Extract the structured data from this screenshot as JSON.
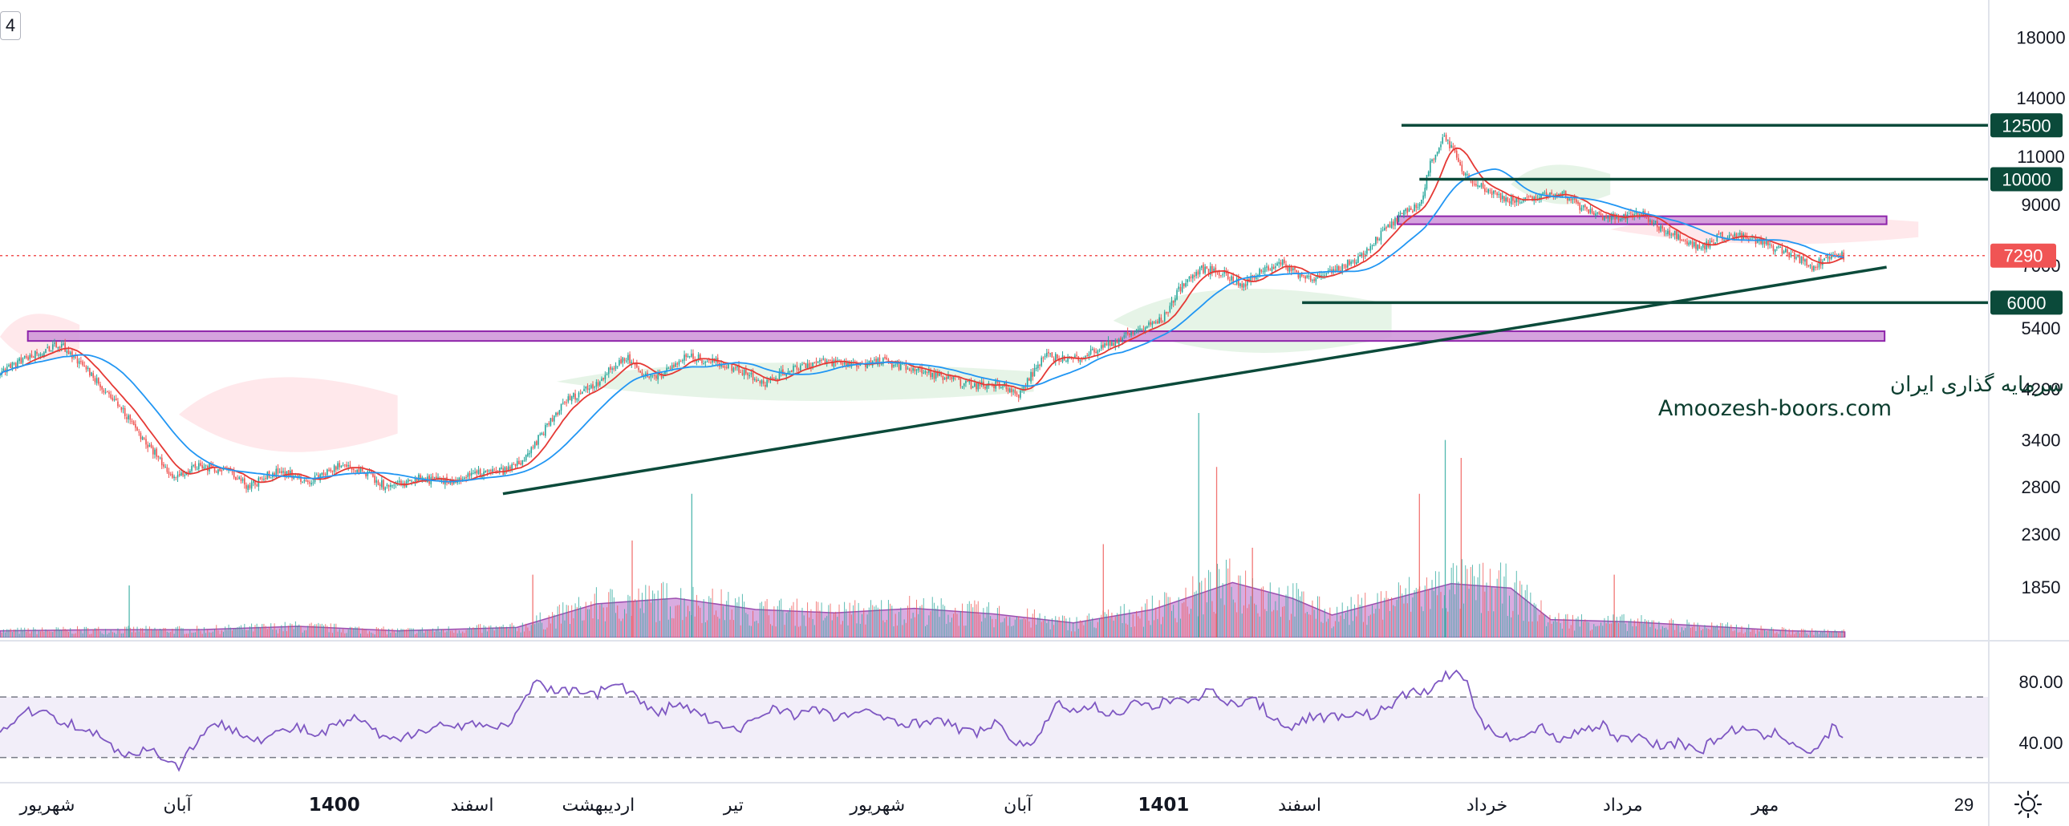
{
  "top_left_tag": "4",
  "colors": {
    "bull": "#26a69a",
    "bear": "#ef5350",
    "ma_fast": "#e53935",
    "ma_slow": "#2196f3",
    "trendline": "#0b4a3a",
    "zone_fill": "#ce93d8",
    "zone_stroke": "#8e24aa",
    "volume_ma": "#ba68c8",
    "rsi_line": "#7e57c2",
    "rsi_band": "#ede7f6",
    "last_price": "#f05454"
  },
  "icons": {
    "settings": "sun-gear-icon"
  },
  "chart_data": [
    {
      "type": "candlestick",
      "scale": "log",
      "ylim": [
        1500,
        21000
      ],
      "y_ticks": [
        1850,
        2300,
        2800,
        3400,
        4200,
        5400,
        7000,
        9000,
        11000,
        14000,
        18000
      ],
      "x_labels": [
        {
          "label": "شهریور",
          "pos": 0.0238
        },
        {
          "label": "آبان",
          "pos": 0.0892
        },
        {
          "label": "1400",
          "pos": 0.1682,
          "bold": true
        },
        {
          "label": "اسفند",
          "pos": 0.2375
        },
        {
          "label": "اردیبهشت",
          "pos": 0.301
        },
        {
          "label": "تیر",
          "pos": 0.369
        },
        {
          "label": "شهریور",
          "pos": 0.4414
        },
        {
          "label": "آبان",
          "pos": 0.512
        },
        {
          "label": "1401",
          "pos": 0.5853,
          "bold": true
        },
        {
          "label": "اسفند",
          "pos": 0.6538
        },
        {
          "label": "خرداد",
          "pos": 0.748
        },
        {
          "label": "مرداد",
          "pos": 0.8163
        },
        {
          "label": "مهر",
          "pos": 0.8879
        }
      ],
      "x_axis_extra": "29",
      "close_path": [
        [
          0.0,
          4450
        ],
        [
          0.014,
          4800
        ],
        [
          0.03,
          5050
        ],
        [
          0.045,
          4500
        ],
        [
          0.06,
          3900
        ],
        [
          0.075,
          3300
        ],
        [
          0.088,
          2900
        ],
        [
          0.1,
          3050
        ],
        [
          0.115,
          3000
        ],
        [
          0.125,
          2800
        ],
        [
          0.14,
          3000
        ],
        [
          0.155,
          2850
        ],
        [
          0.17,
          3050
        ],
        [
          0.185,
          2950
        ],
        [
          0.195,
          2780
        ],
        [
          0.21,
          2900
        ],
        [
          0.225,
          2850
        ],
        [
          0.24,
          2950
        ],
        [
          0.255,
          3000
        ],
        [
          0.265,
          3150
        ],
        [
          0.275,
          3600
        ],
        [
          0.285,
          4000
        ],
        [
          0.3,
          4300
        ],
        [
          0.315,
          4800
        ],
        [
          0.325,
          4400
        ],
        [
          0.335,
          4500
        ],
        [
          0.345,
          4800
        ],
        [
          0.36,
          4700
        ],
        [
          0.375,
          4500
        ],
        [
          0.385,
          4300
        ],
        [
          0.4,
          4600
        ],
        [
          0.415,
          4700
        ],
        [
          0.43,
          4650
        ],
        [
          0.445,
          4700
        ],
        [
          0.46,
          4550
        ],
        [
          0.475,
          4400
        ],
        [
          0.49,
          4250
        ],
        [
          0.505,
          4300
        ],
        [
          0.512,
          4050
        ],
        [
          0.525,
          4800
        ],
        [
          0.54,
          4750
        ],
        [
          0.55,
          4900
        ],
        [
          0.565,
          5200
        ],
        [
          0.575,
          5400
        ],
        [
          0.585,
          5600
        ],
        [
          0.595,
          6500
        ],
        [
          0.605,
          6900
        ],
        [
          0.615,
          6800
        ],
        [
          0.625,
          6400
        ],
        [
          0.635,
          6900
        ],
        [
          0.645,
          7050
        ],
        [
          0.655,
          6700
        ],
        [
          0.665,
          6650
        ],
        [
          0.675,
          6950
        ],
        [
          0.685,
          7300
        ],
        [
          0.695,
          8000
        ],
        [
          0.705,
          8600
        ],
        [
          0.715,
          9100
        ],
        [
          0.72,
          10800
        ],
        [
          0.727,
          12000
        ],
        [
          0.735,
          10400
        ],
        [
          0.745,
          9700
        ],
        [
          0.755,
          9300
        ],
        [
          0.765,
          9100
        ],
        [
          0.775,
          9300
        ],
        [
          0.785,
          9500
        ],
        [
          0.795,
          8900
        ],
        [
          0.805,
          8600
        ],
        [
          0.815,
          8500
        ],
        [
          0.825,
          8700
        ],
        [
          0.835,
          8200
        ],
        [
          0.845,
          7900
        ],
        [
          0.855,
          7500
        ],
        [
          0.865,
          7900
        ],
        [
          0.875,
          7900
        ],
        [
          0.885,
          7700
        ],
        [
          0.895,
          7500
        ],
        [
          0.905,
          7200
        ],
        [
          0.912,
          6950
        ],
        [
          0.92,
          7300
        ],
        [
          0.928,
          7290
        ]
      ],
      "candles_per_unit": 1130,
      "last_price": 7290,
      "moving_averages": [
        {
          "role": "fast",
          "smoothing": 14
        },
        {
          "role": "slow",
          "smoothing": 40
        }
      ],
      "horizontal_levels": [
        {
          "value": 12500,
          "from": 0.705,
          "label": "12500"
        },
        {
          "value": 10000,
          "from": 0.714,
          "label": "10000"
        },
        {
          "value": 6000,
          "from": 0.655,
          "label": "6000"
        }
      ],
      "price_zones": [
        {
          "from": 0.014,
          "to": 0.948,
          "low": 5120,
          "high": 5330
        },
        {
          "from": 0.703,
          "to": 0.949,
          "low": 8300,
          "high": 8580
        }
      ],
      "trendline": {
        "start": [
          0.253,
          2720
        ],
        "end": [
          0.949,
          6950
        ]
      },
      "cloud": [
        {
          "from": 0.0,
          "to": 0.04,
          "low": 4600,
          "high": 5900,
          "tone": "bear"
        },
        {
          "from": 0.09,
          "to": 0.2,
          "low": 3100,
          "high": 4600,
          "tone": "bear"
        },
        {
          "from": 0.28,
          "to": 0.52,
          "low": 3900,
          "high": 4800,
          "tone": "bull"
        },
        {
          "from": 0.56,
          "to": 0.7,
          "low": 4700,
          "high": 6600,
          "tone": "bull"
        },
        {
          "from": 0.76,
          "to": 0.81,
          "low": 8800,
          "high": 10900,
          "tone": "bull"
        },
        {
          "from": 0.81,
          "to": 0.965,
          "low": 7500,
          "high": 8800,
          "tone": "bear"
        }
      ],
      "volume": {
        "ma_envelope": [
          [
            0.0,
            0.06
          ],
          [
            0.05,
            0.07
          ],
          [
            0.1,
            0.07
          ],
          [
            0.15,
            0.1
          ],
          [
            0.2,
            0.06
          ],
          [
            0.26,
            0.09
          ],
          [
            0.3,
            0.3
          ],
          [
            0.34,
            0.35
          ],
          [
            0.38,
            0.25
          ],
          [
            0.42,
            0.22
          ],
          [
            0.46,
            0.26
          ],
          [
            0.5,
            0.21
          ],
          [
            0.54,
            0.13
          ],
          [
            0.58,
            0.25
          ],
          [
            0.62,
            0.49
          ],
          [
            0.65,
            0.35
          ],
          [
            0.67,
            0.2
          ],
          [
            0.7,
            0.34
          ],
          [
            0.73,
            0.48
          ],
          [
            0.76,
            0.44
          ],
          [
            0.78,
            0.16
          ],
          [
            0.82,
            0.14
          ],
          [
            0.86,
            0.1
          ],
          [
            0.9,
            0.06
          ],
          [
            0.928,
            0.05
          ]
        ],
        "spikes": [
          {
            "x": 0.065,
            "v": 0.29
          },
          {
            "x": 0.268,
            "v": 0.35
          },
          {
            "x": 0.318,
            "v": 0.54
          },
          {
            "x": 0.348,
            "v": 0.8
          },
          {
            "x": 0.555,
            "v": 0.52
          },
          {
            "x": 0.603,
            "v": 1.25
          },
          {
            "x": 0.612,
            "v": 0.95
          },
          {
            "x": 0.63,
            "v": 0.5
          },
          {
            "x": 0.714,
            "v": 0.8
          },
          {
            "x": 0.727,
            "v": 1.1
          },
          {
            "x": 0.735,
            "v": 1.0
          },
          {
            "x": 0.812,
            "v": 0.35
          }
        ]
      }
    },
    {
      "type": "line",
      "indicator": "rsi",
      "ylim": [
        15,
        105
      ],
      "y_ticks": [
        40.0,
        80.0
      ],
      "bands": [
        30,
        70
      ],
      "series_path": [
        [
          0.0,
          47
        ],
        [
          0.01,
          58
        ],
        [
          0.02,
          62
        ],
        [
          0.03,
          55
        ],
        [
          0.04,
          50
        ],
        [
          0.048,
          46
        ],
        [
          0.055,
          38
        ],
        [
          0.065,
          32
        ],
        [
          0.075,
          36
        ],
        [
          0.085,
          28
        ],
        [
          0.09,
          24
        ],
        [
          0.1,
          44
        ],
        [
          0.11,
          52
        ],
        [
          0.12,
          48
        ],
        [
          0.13,
          42
        ],
        [
          0.14,
          46
        ],
        [
          0.15,
          50
        ],
        [
          0.16,
          44
        ],
        [
          0.17,
          52
        ],
        [
          0.18,
          56
        ],
        [
          0.19,
          45
        ],
        [
          0.2,
          40
        ],
        [
          0.21,
          48
        ],
        [
          0.22,
          52
        ],
        [
          0.23,
          50
        ],
        [
          0.24,
          54
        ],
        [
          0.25,
          48
        ],
        [
          0.26,
          58
        ],
        [
          0.27,
          80
        ],
        [
          0.28,
          72
        ],
        [
          0.29,
          76
        ],
        [
          0.3,
          72
        ],
        [
          0.31,
          80
        ],
        [
          0.32,
          70
        ],
        [
          0.33,
          58
        ],
        [
          0.34,
          66
        ],
        [
          0.35,
          60
        ],
        [
          0.36,
          52
        ],
        [
          0.37,
          47
        ],
        [
          0.38,
          56
        ],
        [
          0.39,
          64
        ],
        [
          0.4,
          58
        ],
        [
          0.41,
          62
        ],
        [
          0.42,
          56
        ],
        [
          0.43,
          60
        ],
        [
          0.44,
          58
        ],
        [
          0.45,
          55
        ],
        [
          0.46,
          52
        ],
        [
          0.47,
          56
        ],
        [
          0.48,
          50
        ],
        [
          0.49,
          46
        ],
        [
          0.5,
          52
        ],
        [
          0.51,
          42
        ],
        [
          0.52,
          36
        ],
        [
          0.53,
          65
        ],
        [
          0.54,
          62
        ],
        [
          0.55,
          64
        ],
        [
          0.56,
          58
        ],
        [
          0.57,
          66
        ],
        [
          0.58,
          62
        ],
        [
          0.59,
          70
        ],
        [
          0.6,
          66
        ],
        [
          0.61,
          76
        ],
        [
          0.62,
          64
        ],
        [
          0.63,
          70
        ],
        [
          0.64,
          56
        ],
        [
          0.65,
          50
        ],
        [
          0.66,
          58
        ],
        [
          0.67,
          56
        ],
        [
          0.68,
          60
        ],
        [
          0.69,
          58
        ],
        [
          0.7,
          64
        ],
        [
          0.71,
          75
        ],
        [
          0.718,
          72
        ],
        [
          0.725,
          82
        ],
        [
          0.735,
          88
        ],
        [
          0.74,
          70
        ],
        [
          0.745,
          52
        ],
        [
          0.755,
          46
        ],
        [
          0.765,
          42
        ],
        [
          0.775,
          50
        ],
        [
          0.785,
          42
        ],
        [
          0.795,
          48
        ],
        [
          0.805,
          52
        ],
        [
          0.815,
          42
        ],
        [
          0.825,
          44
        ],
        [
          0.835,
          38
        ],
        [
          0.845,
          40
        ],
        [
          0.855,
          34
        ],
        [
          0.865,
          44
        ],
        [
          0.875,
          50
        ],
        [
          0.885,
          44
        ],
        [
          0.895,
          46
        ],
        [
          0.905,
          38
        ],
        [
          0.912,
          32
        ],
        [
          0.918,
          42
        ],
        [
          0.922,
          50
        ],
        [
          0.928,
          44
        ]
      ]
    }
  ],
  "watermark": {
    "line1": "انجمن خبرگان سرمایه گذاری ایران",
    "line2": "Amoozesh-boors.com"
  }
}
